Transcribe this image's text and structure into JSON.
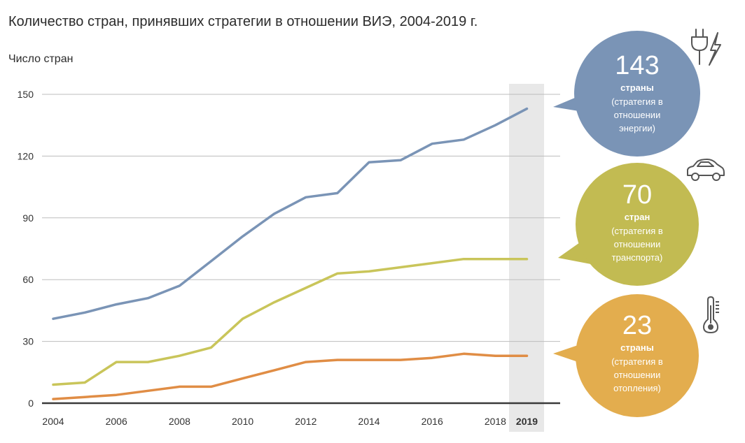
{
  "title": "Количество стран, принявших стратегии в отношении ВИЭ, 2004-2019 г.",
  "ylabel": "Число стран",
  "chart_data": {
    "type": "line",
    "x": [
      2004,
      2005,
      2006,
      2007,
      2008,
      2009,
      2010,
      2011,
      2012,
      2013,
      2014,
      2015,
      2016,
      2017,
      2018,
      2019
    ],
    "xticks": [
      "2004",
      "2006",
      "2008",
      "2010",
      "2012",
      "2014",
      "2016",
      "2018",
      "2019"
    ],
    "yticks": [
      "0",
      "30",
      "60",
      "90",
      "120",
      "150"
    ],
    "ylim": [
      0,
      150
    ],
    "grid": true,
    "highlight_year": 2019,
    "series": [
      {
        "color": "#7a94b6",
        "values": [
          41,
          44,
          48,
          51,
          57,
          69,
          81,
          92,
          100,
          102,
          117,
          118,
          126,
          128,
          135,
          143
        ]
      },
      {
        "color": "#c9c55a",
        "values": [
          9,
          10,
          20,
          20,
          23,
          27,
          41,
          49,
          56,
          63,
          64,
          66,
          68,
          70,
          70,
          70
        ]
      },
      {
        "color": "#e08d45",
        "values": [
          2,
          3,
          4,
          6,
          8,
          8,
          12,
          16,
          20,
          21,
          21,
          21,
          22,
          24,
          23,
          23
        ]
      }
    ]
  },
  "callouts": [
    {
      "number": "143",
      "unit": "страны",
      "line1": "(стратегия в",
      "line2": "отношении",
      "line3": "энергии)",
      "color": "#7a94b6",
      "icon": "plug-lightning-icon"
    },
    {
      "number": "70",
      "unit": "стран",
      "line1": "(стратегия в",
      "line2": "отношении",
      "line3": "транспорта)",
      "color": "#c2bb52",
      "icon": "car-icon"
    },
    {
      "number": "23",
      "unit": "страны",
      "line1": "(стратегия в",
      "line2": "отношении",
      "line3": "отопления)",
      "color": "#e3ad4e",
      "icon": "thermometer-icon"
    }
  ]
}
